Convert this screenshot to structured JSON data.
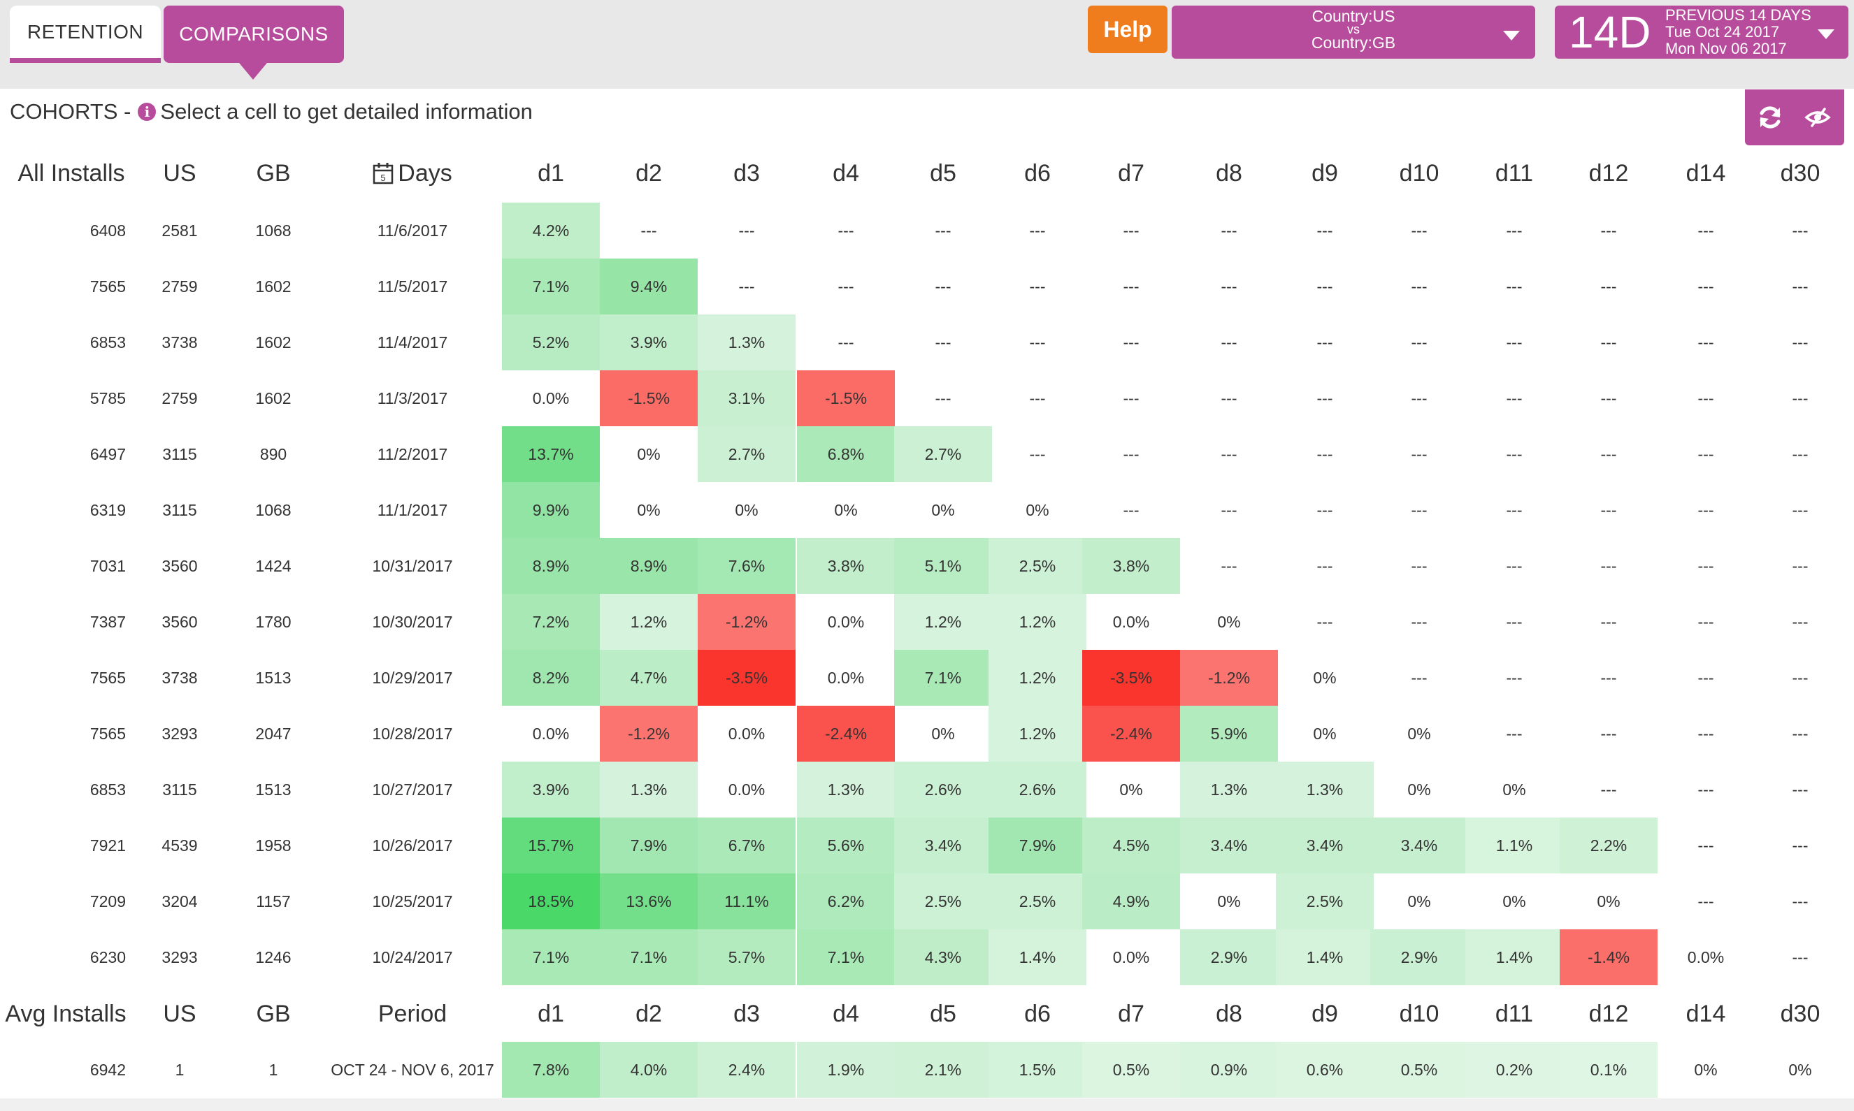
{
  "tabs": {
    "retention": "RETENTION",
    "comparisons": "COMPARISONS"
  },
  "help_label": "Help",
  "country_filter": {
    "line1": "Country:US",
    "vs": "vs",
    "line2": "Country:GB"
  },
  "date_range": {
    "big": "14D",
    "line1": "PREVIOUS 14 DAYS",
    "line2": "Tue Oct 24 2017",
    "line3": "Mon Nov 06 2017"
  },
  "cohorts": {
    "title": "COHORTS -",
    "hint": "Select a cell to get detailed information"
  },
  "icons": {
    "info": "info-icon",
    "refresh": "refresh-icon",
    "hide": "eye-slash-icon",
    "calendar": "calendar-icon"
  },
  "colors": {
    "accent": "#b74c9c",
    "help": "#ef7d1e"
  },
  "header": {
    "installs": "All Installs",
    "us": "US",
    "gb": "GB",
    "days": "Days",
    "day_cols": [
      "d1",
      "d2",
      "d3",
      "d4",
      "d5",
      "d6",
      "d7",
      "d8",
      "d9",
      "d10",
      "d11",
      "d12",
      "d14",
      "d30"
    ]
  },
  "rows": [
    {
      "installs": "6408",
      "us": "2581",
      "gb": "1068",
      "date": "11/6/2017",
      "values": [
        "4.2%",
        "---",
        "---",
        "---",
        "---",
        "---",
        "---",
        "---",
        "---",
        "---",
        "---",
        "---",
        "---",
        "---"
      ]
    },
    {
      "installs": "7565",
      "us": "2759",
      "gb": "1602",
      "date": "11/5/2017",
      "values": [
        "7.1%",
        "9.4%",
        "---",
        "---",
        "---",
        "---",
        "---",
        "---",
        "---",
        "---",
        "---",
        "---",
        "---",
        "---"
      ]
    },
    {
      "installs": "6853",
      "us": "3738",
      "gb": "1602",
      "date": "11/4/2017",
      "values": [
        "5.2%",
        "3.9%",
        "1.3%",
        "---",
        "---",
        "---",
        "---",
        "---",
        "---",
        "---",
        "---",
        "---",
        "---",
        "---"
      ]
    },
    {
      "installs": "5785",
      "us": "2759",
      "gb": "1602",
      "date": "11/3/2017",
      "values": [
        "0.0%",
        "-1.5%",
        "3.1%",
        "-1.5%",
        "---",
        "---",
        "---",
        "---",
        "---",
        "---",
        "---",
        "---",
        "---",
        "---"
      ]
    },
    {
      "installs": "6497",
      "us": "3115",
      "gb": "890",
      "date": "11/2/2017",
      "values": [
        "13.7%",
        "0%",
        "2.7%",
        "6.8%",
        "2.7%",
        "---",
        "---",
        "---",
        "---",
        "---",
        "---",
        "---",
        "---",
        "---"
      ]
    },
    {
      "installs": "6319",
      "us": "3115",
      "gb": "1068",
      "date": "11/1/2017",
      "values": [
        "9.9%",
        "0%",
        "0%",
        "0%",
        "0%",
        "0%",
        "---",
        "---",
        "---",
        "---",
        "---",
        "---",
        "---",
        "---"
      ]
    },
    {
      "installs": "7031",
      "us": "3560",
      "gb": "1424",
      "date": "10/31/2017",
      "values": [
        "8.9%",
        "8.9%",
        "7.6%",
        "3.8%",
        "5.1%",
        "2.5%",
        "3.8%",
        "---",
        "---",
        "---",
        "---",
        "---",
        "---",
        "---"
      ]
    },
    {
      "installs": "7387",
      "us": "3560",
      "gb": "1780",
      "date": "10/30/2017",
      "values": [
        "7.2%",
        "1.2%",
        "-1.2%",
        "0.0%",
        "1.2%",
        "1.2%",
        "0.0%",
        "0%",
        "---",
        "---",
        "---",
        "---",
        "---",
        "---"
      ]
    },
    {
      "installs": "7565",
      "us": "3738",
      "gb": "1513",
      "date": "10/29/2017",
      "values": [
        "8.2%",
        "4.7%",
        "-3.5%",
        "0.0%",
        "7.1%",
        "1.2%",
        "-3.5%",
        "-1.2%",
        "0%",
        "---",
        "---",
        "---",
        "---",
        "---"
      ]
    },
    {
      "installs": "7565",
      "us": "3293",
      "gb": "2047",
      "date": "10/28/2017",
      "values": [
        "0.0%",
        "-1.2%",
        "0.0%",
        "-2.4%",
        "0%",
        "1.2%",
        "-2.4%",
        "5.9%",
        "0%",
        "0%",
        "---",
        "---",
        "---",
        "---"
      ]
    },
    {
      "installs": "6853",
      "us": "3115",
      "gb": "1513",
      "date": "10/27/2017",
      "values": [
        "3.9%",
        "1.3%",
        "0.0%",
        "1.3%",
        "2.6%",
        "2.6%",
        "0%",
        "1.3%",
        "1.3%",
        "0%",
        "0%",
        "---",
        "---",
        "---"
      ]
    },
    {
      "installs": "7921",
      "us": "4539",
      "gb": "1958",
      "date": "10/26/2017",
      "values": [
        "15.7%",
        "7.9%",
        "6.7%",
        "5.6%",
        "3.4%",
        "7.9%",
        "4.5%",
        "3.4%",
        "3.4%",
        "3.4%",
        "1.1%",
        "2.2%",
        "---",
        "---"
      ]
    },
    {
      "installs": "7209",
      "us": "3204",
      "gb": "1157",
      "date": "10/25/2017",
      "values": [
        "18.5%",
        "13.6%",
        "11.1%",
        "6.2%",
        "2.5%",
        "2.5%",
        "4.9%",
        "0%",
        "2.5%",
        "0%",
        "0%",
        "0%",
        "---",
        "---"
      ]
    },
    {
      "installs": "6230",
      "us": "3293",
      "gb": "1246",
      "date": "10/24/2017",
      "values": [
        "7.1%",
        "7.1%",
        "5.7%",
        "7.1%",
        "4.3%",
        "1.4%",
        "0.0%",
        "2.9%",
        "1.4%",
        "2.9%",
        "1.4%",
        "-1.4%",
        "0.0%",
        "---"
      ]
    }
  ],
  "avg_header": {
    "installs": "Avg Installs",
    "us": "US",
    "gb": "GB",
    "period": "Period",
    "day_cols": [
      "d1",
      "d2",
      "d3",
      "d4",
      "d5",
      "d6",
      "d7",
      "d8",
      "d9",
      "d10",
      "d11",
      "d12",
      "d14",
      "d30"
    ]
  },
  "avg_row": {
    "installs": "6942",
    "us": "1",
    "gb": "1",
    "period": "OCT 24 - NOV 6, 2017",
    "values": [
      "7.8%",
      "4.0%",
      "2.4%",
      "1.9%",
      "2.1%",
      "1.5%",
      "0.5%",
      "0.9%",
      "0.6%",
      "0.5%",
      "0.2%",
      "0.1%",
      "0%",
      "0%"
    ]
  }
}
